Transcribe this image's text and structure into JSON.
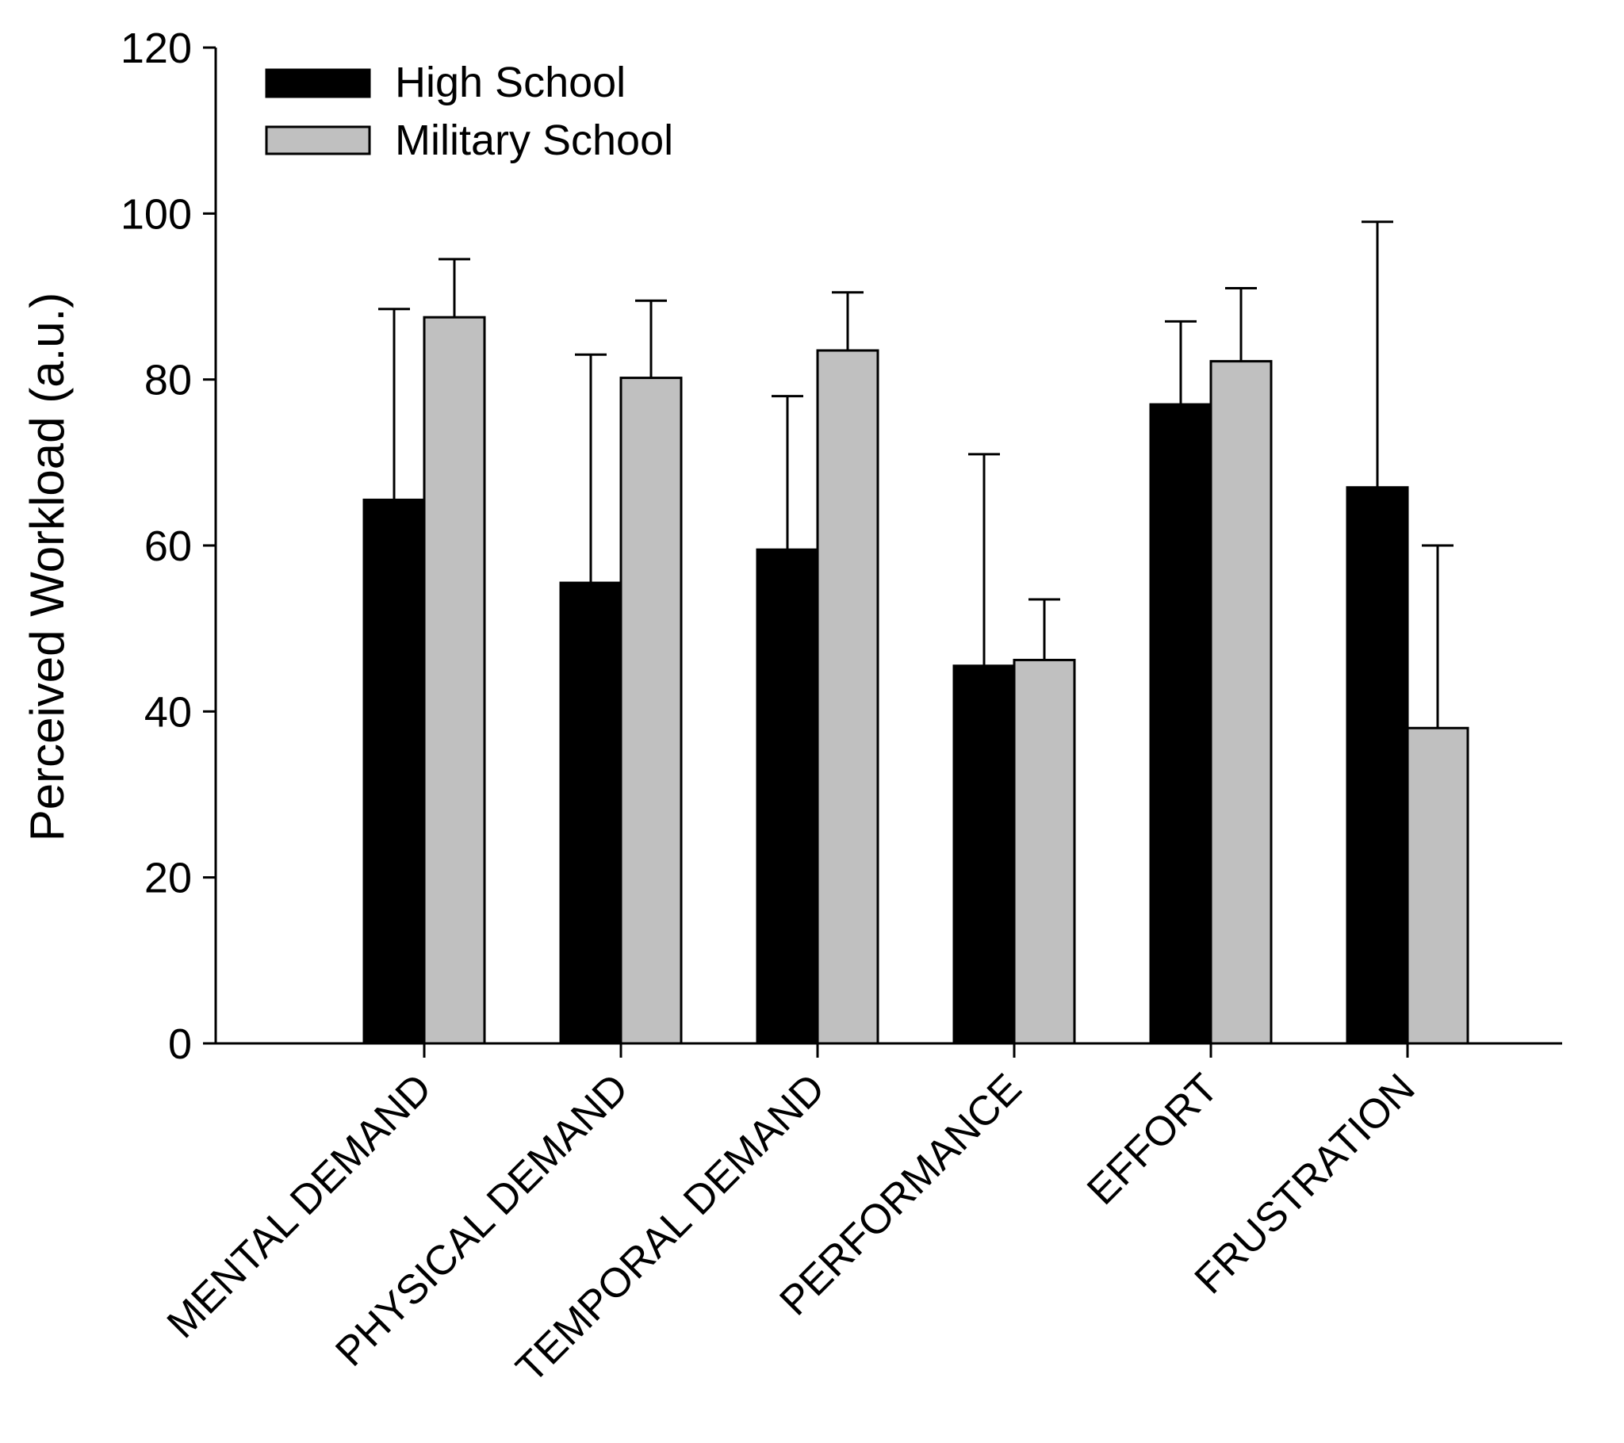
{
  "chart_data": {
    "type": "bar",
    "title": "",
    "xlabel": "",
    "ylabel": "Perceived Workload (a.u.)",
    "ylim": [
      0,
      120
    ],
    "yticks": [
      0,
      20,
      40,
      60,
      80,
      100,
      120
    ],
    "grid": false,
    "legend_position": "top-left",
    "categories": [
      "MENTAL DEMAND",
      "PHYSICAL DEMAND",
      "TEMPORAL DEMAND",
      "PERFORMANCE",
      "EFFORT",
      "FRUSTRATION"
    ],
    "series": [
      {
        "name": "High School",
        "color": "#000000",
        "values": [
          65.5,
          55.5,
          59.5,
          45.5,
          77,
          67
        ],
        "error_upper": [
          88.5,
          83,
          78,
          71,
          87,
          99
        ]
      },
      {
        "name": "Military School",
        "color": "#c0c0c0",
        "values": [
          87.5,
          80.2,
          83.5,
          46.2,
          82.2,
          38
        ],
        "error_upper": [
          94.5,
          89.5,
          90.5,
          53.5,
          91,
          60
        ]
      }
    ]
  }
}
